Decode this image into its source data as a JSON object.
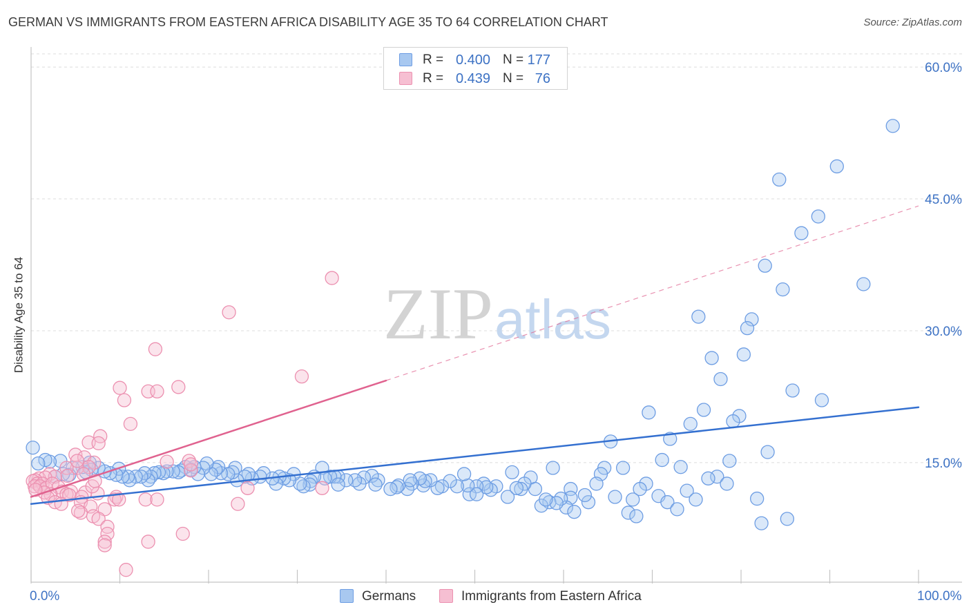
{
  "source": "Source: ZipAtlas.com",
  "watermark": {
    "zip": "ZIP",
    "atlas": "atlas"
  },
  "legend": {
    "r_label": "R =",
    "n_label": "N ="
  },
  "chart_data": {
    "type": "scatter",
    "title": "GERMAN VS IMMIGRANTS FROM EASTERN AFRICA DISABILITY AGE 35 TO 64 CORRELATION CHART",
    "xlabel": "",
    "ylabel": "Disability Age 35 to 64",
    "xlim": [
      0,
      104.9
    ],
    "ylim": [
      1.4,
      61.5
    ],
    "grid": true,
    "legend_position": "top-center",
    "series_legend_position": "bottom-center",
    "x_ticks": [
      0,
      10,
      20,
      30,
      40,
      50,
      60,
      70,
      80,
      90,
      100
    ],
    "x_tick_labels": [
      {
        "value": 0,
        "label": "0.0%"
      },
      {
        "value": 100,
        "label": "100.0%"
      }
    ],
    "y_ticks": [
      {
        "value": 15,
        "label": "15.0%"
      },
      {
        "value": 30,
        "label": "30.0%"
      },
      {
        "value": 45,
        "label": "45.0%"
      },
      {
        "value": 60,
        "label": "60.0%"
      }
    ],
    "series": [
      {
        "key": "germans",
        "name": "Germans",
        "color": "#6d9de3",
        "fill": "#a8c8f0",
        "line_color": "#3470d0",
        "r": "0.400",
        "n": "177",
        "trend": {
          "x0": 0,
          "y0": 10.3,
          "x1": 100,
          "y1": 21.3
        },
        "points": [
          [
            97.1,
            53.3
          ],
          [
            90.8,
            48.7
          ],
          [
            84.3,
            47.2
          ],
          [
            88.7,
            43.0
          ],
          [
            86.8,
            41.1
          ],
          [
            82.7,
            37.4
          ],
          [
            93.8,
            35.3
          ],
          [
            84.7,
            34.7
          ],
          [
            75.2,
            31.6
          ],
          [
            81.2,
            31.3
          ],
          [
            80.7,
            30.3
          ],
          [
            80.3,
            27.3
          ],
          [
            76.7,
            26.9
          ],
          [
            77.7,
            24.5
          ],
          [
            85.8,
            23.2
          ],
          [
            89.1,
            22.1
          ],
          [
            69.6,
            20.7
          ],
          [
            75.8,
            21.0
          ],
          [
            79.8,
            20.3
          ],
          [
            79.1,
            19.7
          ],
          [
            74.3,
            19.4
          ],
          [
            65.3,
            17.4
          ],
          [
            72.0,
            17.7
          ],
          [
            83.0,
            16.2
          ],
          [
            71.1,
            15.3
          ],
          [
            78.7,
            15.2
          ],
          [
            73.2,
            14.5
          ],
          [
            64.6,
            14.4
          ],
          [
            66.7,
            14.4
          ],
          [
            58.8,
            14.4
          ],
          [
            54.2,
            13.9
          ],
          [
            64.2,
            13.7
          ],
          [
            77.3,
            13.4
          ],
          [
            76.3,
            13.2
          ],
          [
            78.4,
            12.6
          ],
          [
            69.3,
            12.6
          ],
          [
            56.3,
            13.3
          ],
          [
            63.7,
            12.6
          ],
          [
            68.6,
            12.0
          ],
          [
            73.9,
            11.8
          ],
          [
            70.7,
            11.2
          ],
          [
            67.8,
            10.8
          ],
          [
            71.7,
            10.5
          ],
          [
            65.8,
            11.1
          ],
          [
            74.9,
            10.8
          ],
          [
            81.8,
            10.9
          ],
          [
            72.8,
            9.7
          ],
          [
            67.3,
            9.3
          ],
          [
            68.2,
            8.9
          ],
          [
            82.3,
            8.1
          ],
          [
            85.2,
            8.6
          ],
          [
            62.8,
            10.5
          ],
          [
            62.4,
            11.3
          ],
          [
            60.8,
            12.0
          ],
          [
            60.8,
            11.0
          ],
          [
            60.3,
            9.9
          ],
          [
            59.7,
            10.9
          ],
          [
            58.4,
            10.5
          ],
          [
            57.5,
            10.1
          ],
          [
            59.2,
            10.4
          ],
          [
            61.2,
            9.4
          ],
          [
            58.0,
            10.8
          ],
          [
            56.8,
            12.0
          ],
          [
            55.6,
            12.6
          ],
          [
            55.2,
            12.0
          ],
          [
            53.7,
            11.1
          ],
          [
            54.7,
            12.1
          ],
          [
            52.4,
            12.3
          ],
          [
            51.8,
            11.9
          ],
          [
            51.0,
            12.6
          ],
          [
            51.3,
            12.2
          ],
          [
            50.2,
            12.3
          ],
          [
            49.4,
            11.4
          ],
          [
            50.2,
            11.4
          ],
          [
            49.2,
            12.4
          ],
          [
            48.8,
            13.7
          ],
          [
            48.0,
            12.3
          ],
          [
            47.2,
            12.9
          ],
          [
            46.3,
            12.3
          ],
          [
            45.8,
            12.1
          ],
          [
            45.0,
            13.0
          ],
          [
            44.2,
            12.4
          ],
          [
            44.4,
            12.9
          ],
          [
            43.8,
            13.2
          ],
          [
            42.9,
            12.6
          ],
          [
            42.4,
            12.0
          ],
          [
            42.7,
            13.0
          ],
          [
            41.4,
            12.4
          ],
          [
            41.2,
            12.2
          ],
          [
            40.5,
            12.0
          ],
          [
            39.1,
            13.0
          ],
          [
            38.4,
            13.5
          ],
          [
            38.8,
            12.5
          ],
          [
            37.5,
            13.3
          ],
          [
            37.0,
            12.6
          ],
          [
            36.5,
            13.0
          ],
          [
            35.5,
            13.0
          ],
          [
            34.6,
            13.4
          ],
          [
            34.2,
            13.4
          ],
          [
            33.7,
            13.4
          ],
          [
            34.6,
            12.5
          ],
          [
            32.8,
            14.4
          ],
          [
            33.1,
            13.2
          ],
          [
            31.9,
            13.4
          ],
          [
            31.5,
            12.9
          ],
          [
            31.4,
            12.5
          ],
          [
            30.7,
            12.3
          ],
          [
            30.3,
            12.6
          ],
          [
            29.6,
            13.7
          ],
          [
            29.1,
            13.0
          ],
          [
            28.5,
            13.2
          ],
          [
            28.0,
            13.4
          ],
          [
            27.6,
            12.6
          ],
          [
            27.2,
            13.2
          ],
          [
            26.2,
            13.8
          ],
          [
            25.8,
            13.4
          ],
          [
            24.9,
            13.2
          ],
          [
            24.5,
            13.7
          ],
          [
            24.1,
            13.4
          ],
          [
            23.2,
            13.0
          ],
          [
            23.0,
            14.4
          ],
          [
            22.7,
            13.9
          ],
          [
            22.2,
            13.7
          ],
          [
            21.4,
            13.8
          ],
          [
            21.1,
            14.5
          ],
          [
            20.8,
            14.2
          ],
          [
            20.3,
            13.7
          ],
          [
            19.8,
            14.9
          ],
          [
            19.4,
            14.4
          ],
          [
            18.8,
            13.7
          ],
          [
            18.4,
            14.5
          ],
          [
            18.0,
            14.2
          ],
          [
            17.4,
            14.5
          ],
          [
            16.9,
            14.1
          ],
          [
            16.6,
            13.9
          ],
          [
            16.0,
            14.0
          ],
          [
            15.3,
            14.0
          ],
          [
            14.9,
            13.8
          ],
          [
            14.4,
            13.9
          ],
          [
            13.9,
            13.8
          ],
          [
            13.5,
            13.4
          ],
          [
            13.2,
            13.0
          ],
          [
            12.8,
            13.8
          ],
          [
            12.4,
            13.4
          ],
          [
            11.8,
            13.4
          ],
          [
            11.1,
            13.0
          ],
          [
            10.9,
            13.4
          ],
          [
            10.3,
            13.4
          ],
          [
            9.9,
            14.3
          ],
          [
            9.6,
            13.6
          ],
          [
            8.9,
            13.8
          ],
          [
            8.3,
            14.0
          ],
          [
            7.6,
            14.4
          ],
          [
            6.6,
            15.0
          ],
          [
            6.8,
            14.2
          ],
          [
            6.2,
            13.9
          ],
          [
            5.8,
            14.5
          ],
          [
            4.7,
            14.4
          ],
          [
            4.3,
            13.6
          ],
          [
            3.6,
            13.7
          ],
          [
            3.3,
            15.2
          ],
          [
            2.7,
            13.4
          ],
          [
            2.1,
            15.1
          ],
          [
            1.6,
            15.3
          ],
          [
            0.8,
            14.9
          ],
          [
            0.2,
            16.7
          ]
        ]
      },
      {
        "key": "immigrants-eastern-africa",
        "name": "Immigrants from Eastern Africa",
        "color": "#ec90b0",
        "fill": "#f6bfd2",
        "line_color": "#e0628f",
        "r": "0.439",
        "n": "76",
        "trend": {
          "x0": 0,
          "y0": 11.1,
          "x1": 100,
          "y1": 44.2,
          "solid_until": 40
        },
        "points": [
          [
            33.9,
            36.0
          ],
          [
            22.3,
            32.1
          ],
          [
            14.0,
            27.9
          ],
          [
            30.5,
            24.8
          ],
          [
            16.6,
            23.6
          ],
          [
            10.0,
            23.5
          ],
          [
            13.2,
            23.1
          ],
          [
            14.2,
            23.1
          ],
          [
            10.5,
            22.1
          ],
          [
            11.2,
            19.4
          ],
          [
            7.8,
            18.0
          ],
          [
            6.5,
            17.3
          ],
          [
            7.6,
            17.2
          ],
          [
            5.0,
            15.9
          ],
          [
            6.0,
            15.6
          ],
          [
            17.8,
            15.2
          ],
          [
            15.3,
            15.1
          ],
          [
            7.1,
            15.0
          ],
          [
            6.5,
            14.5
          ],
          [
            5.2,
            14.4
          ],
          [
            4.0,
            14.4
          ],
          [
            2.1,
            13.7
          ],
          [
            4.1,
            13.5
          ],
          [
            2.7,
            13.4
          ],
          [
            0.9,
            13.2
          ],
          [
            1.6,
            13.3
          ],
          [
            0.5,
            13.0
          ],
          [
            0.2,
            12.9
          ],
          [
            0.7,
            12.6
          ],
          [
            1.3,
            12.6
          ],
          [
            0.4,
            12.3
          ],
          [
            1.0,
            12.3
          ],
          [
            1.7,
            12.1
          ],
          [
            2.4,
            12.6
          ],
          [
            3.1,
            12.2
          ],
          [
            3.5,
            11.7
          ],
          [
            4.5,
            11.7
          ],
          [
            4.0,
            11.4
          ],
          [
            4.3,
            11.3
          ],
          [
            2.2,
            11.4
          ],
          [
            1.5,
            11.6
          ],
          [
            0.5,
            11.9
          ],
          [
            1.9,
            11.0
          ],
          [
            2.7,
            10.5
          ],
          [
            3.4,
            10.3
          ],
          [
            6.1,
            11.6
          ],
          [
            7.5,
            11.5
          ],
          [
            6.9,
            12.3
          ],
          [
            7.2,
            12.9
          ],
          [
            5.9,
            13.7
          ],
          [
            9.6,
            11.1
          ],
          [
            9.4,
            10.8
          ],
          [
            9.9,
            10.8
          ],
          [
            5.7,
            11.1
          ],
          [
            5.6,
            10.5
          ],
          [
            6.7,
            10.0
          ],
          [
            5.6,
            9.3
          ],
          [
            8.3,
            9.7
          ],
          [
            7.0,
            8.9
          ],
          [
            7.6,
            8.6
          ],
          [
            5.3,
            9.5
          ],
          [
            8.6,
            7.7
          ],
          [
            8.6,
            6.9
          ],
          [
            8.3,
            6.0
          ],
          [
            8.3,
            5.6
          ],
          [
            10.7,
            2.8
          ],
          [
            13.2,
            6.0
          ],
          [
            17.1,
            6.9
          ],
          [
            12.9,
            10.8
          ],
          [
            14.2,
            10.8
          ],
          [
            18.0,
            14.1
          ],
          [
            18.0,
            14.8
          ],
          [
            23.3,
            10.3
          ],
          [
            24.4,
            12.1
          ],
          [
            32.8,
            12.1
          ],
          [
            5.2,
            15.2
          ]
        ]
      }
    ]
  }
}
